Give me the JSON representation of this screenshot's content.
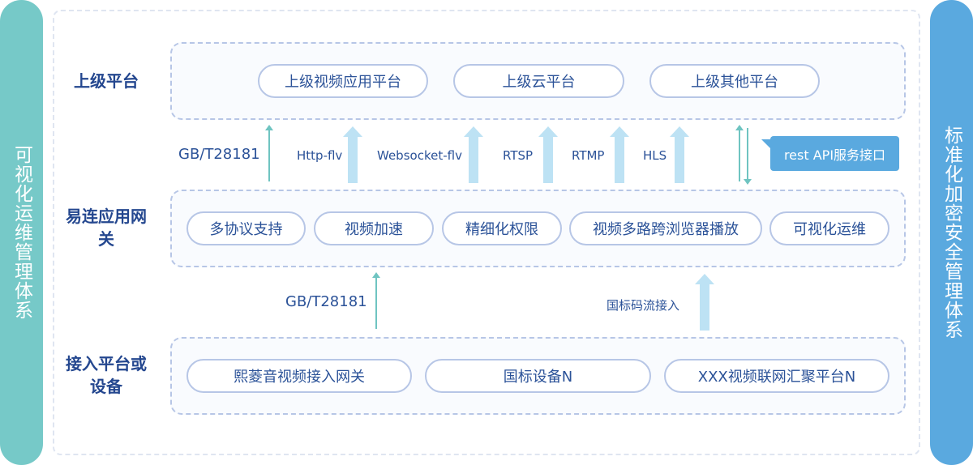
{
  "colors": {
    "left_bar": "#76c9c8",
    "right_bar": "#5aa9df",
    "text": "#2b5298",
    "arrow_fat": "#bde2f4",
    "arrow_thin": "#6fc4c1"
  },
  "left_bar": "可视化运维管理体系",
  "right_bar": "标准化加密安全管理体系",
  "layers": {
    "top": {
      "label": "上级平台",
      "items": [
        "上级视频应用平台",
        "上级云平台",
        "上级其他平台"
      ]
    },
    "middle": {
      "label": "易连应用网关",
      "items": [
        "多协议支持",
        "视频加速",
        "精细化权限",
        "视频多路跨浏览器播放",
        "可视化运维"
      ]
    },
    "bottom": {
      "label": "接入平台或设备",
      "items": [
        "熙菱音视频接入网关",
        "国标设备N",
        "XXX视频联网汇聚平台N"
      ]
    }
  },
  "upper_protocols": [
    "GB/T28181",
    "Http-flv",
    "Websocket-flv",
    "RTSP",
    "RTMP",
    "HLS"
  ],
  "api_label": "rest API服务接口",
  "lower_protocols": [
    "GB/T28181",
    "国标码流接入"
  ]
}
